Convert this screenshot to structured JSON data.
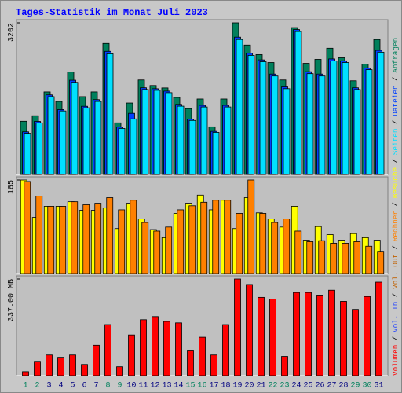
{
  "title": "Tages-Statistik im Monat Juli 2023",
  "categories": [
    "1",
    "2",
    "3",
    "4",
    "5",
    "6",
    "7",
    "8",
    "9",
    "10",
    "11",
    "12",
    "13",
    "14",
    "15",
    "16",
    "17",
    "18",
    "19",
    "20",
    "21",
    "22",
    "23",
    "24",
    "25",
    "26",
    "27",
    "28",
    "29",
    "30",
    "31"
  ],
  "category_colors": [
    "#00805c",
    "#00805c",
    "#000080",
    "#000080",
    "#000080",
    "#000080",
    "#000080",
    "#00805c",
    "#00805c",
    "#000080",
    "#000080",
    "#000080",
    "#000080",
    "#000080",
    "#00805c",
    "#00805c",
    "#000080",
    "#000080",
    "#000080",
    "#000080",
    "#000080",
    "#00805c",
    "#00805c",
    "#000080",
    "#000080",
    "#000080",
    "#000080",
    "#000080",
    "#00805c",
    "#00805c",
    "#000080"
  ],
  "legend_separator": "/",
  "chart_data": [
    {
      "type": "bar",
      "ylim": [
        0,
        3202
      ],
      "yticks": [
        3202
      ],
      "series": [
        {
          "name": "Anfragen",
          "color": "#00805c",
          "values": [
            1123,
            1240,
            1743,
            1542,
            2163,
            1643,
            1743,
            2766,
            1090,
            1509,
            1995,
            1878,
            1827,
            1626,
            1391,
            1593,
            1006,
            1593,
            3202,
            2733,
            2531,
            2364,
            1995,
            3101,
            2347,
            2431,
            2666,
            2464,
            1978,
            2330,
            2850
          ]
        },
        {
          "name": "Dateien",
          "color": "#0040ff",
          "values": [
            900,
            1120,
            1680,
            1370,
            1990,
            1440,
            1580,
            2600,
            1000,
            1291,
            1830,
            1810,
            1760,
            1480,
            1170,
            1460,
            910,
            1460,
            2900,
            2560,
            2420,
            2120,
            1850,
            3060,
            2170,
            2120,
            2440,
            2400,
            1830,
            2250,
            2620
          ]
        },
        {
          "name": "Seiten",
          "color": "#00e0ff",
          "values": [
            869,
            1090,
            1643,
            1341,
            1945,
            1408,
            1542,
            2548,
            972,
            1173,
            1794,
            1777,
            1727,
            1442,
            1140,
            1425,
            889,
            1425,
            2850,
            2515,
            2381,
            2079,
            1811,
            3018,
            2129,
            2079,
            2398,
            2364,
            1794,
            2213,
            2582
          ]
        }
      ]
    },
    {
      "type": "bar",
      "ylim": [
        0,
        185
      ],
      "yticks": [
        185
      ],
      "series": [
        {
          "name": "Besuche",
          "color": "#ffff00",
          "values": [
            185,
            111,
            133,
            133,
            142,
            125,
            125,
            130,
            89,
            139,
            108,
            87,
            71,
            119,
            139,
            155,
            126,
            145,
            89,
            150,
            120,
            108,
            92,
            133,
            66,
            93,
            77,
            66,
            79,
            71,
            66
          ]
        },
        {
          "name": "Rechner",
          "color": "#ff8000",
          "values": [
            182,
            153,
            133,
            133,
            142,
            136,
            139,
            150,
            126,
            145,
            101,
            84,
            92,
            126,
            134,
            141,
            145,
            145,
            119,
            185,
            119,
            101,
            108,
            84,
            63,
            65,
            60,
            60,
            63,
            54,
            44
          ]
        }
      ]
    },
    {
      "type": "bar",
      "ylim": [
        0,
        337
      ],
      "yticks": [
        {
          "value": 337,
          "label": "337.00 MB"
        }
      ],
      "series": [
        {
          "name": "Volumen",
          "color": "#ff0000",
          "values": [
            14,
            50,
            72,
            64,
            72,
            39,
            106,
            178,
            31,
            142,
            195,
            206,
            189,
            184,
            89,
            134,
            72,
            178,
            337,
            318,
            273,
            267,
            67,
            290,
            290,
            281,
            298,
            259,
            231,
            276,
            326
          ]
        }
      ],
      "extra_legend": [
        {
          "name": "Vol. In",
          "color": "#2040ff"
        },
        {
          "name": "Vol. Out",
          "color": "#c06000"
        }
      ]
    }
  ]
}
